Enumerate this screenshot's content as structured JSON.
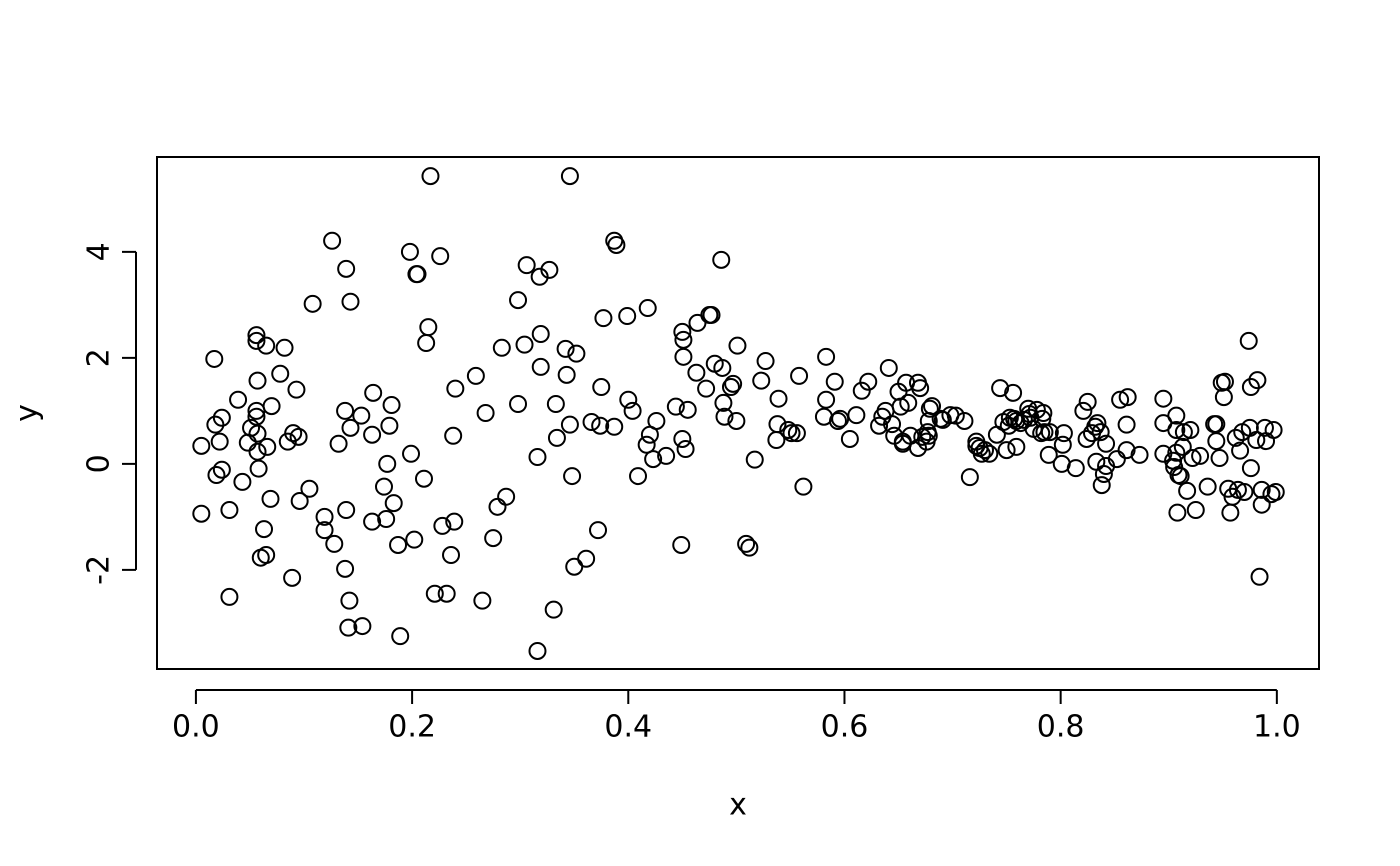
{
  "chart_data": {
    "type": "scatter",
    "x_label": "x",
    "y_label": "y",
    "color": "#000000",
    "grid": false,
    "xlim": [
      -0.036,
      1.039
    ],
    "ylim": [
      -3.87,
      5.79
    ],
    "xticks": [
      {
        "value": 0,
        "label": "0.0"
      },
      0.2,
      0.4,
      0.6,
      0.8,
      {
        "value": 1,
        "label": "1.0"
      }
    ],
    "yticks": [
      -2,
      0,
      2,
      4
    ],
    "x": [
      0.005,
      0.005,
      0.017,
      0.018,
      0.019,
      0.022,
      0.024,
      0.024,
      0.031,
      0.031,
      0.039,
      0.043,
      0.048,
      0.051,
      0.056,
      0.056,
      0.056,
      0.056,
      0.057,
      0.057,
      0.058,
      0.057,
      0.06,
      0.063,
      0.065,
      0.065,
      0.066,
      0.069,
      0.07,
      0.078,
      0.082,
      0.085,
      0.089,
      0.09,
      0.093,
      0.095,
      0.096,
      0.105,
      0.108,
      0.119,
      0.119,
      0.126,
      0.128,
      0.132,
      0.138,
      0.138,
      0.139,
      0.139,
      0.143,
      0.143,
      0.142,
      0.141,
      0.153,
      0.154,
      0.163,
      0.163,
      0.164,
      0.174,
      0.176,
      0.177,
      0.179,
      0.181,
      0.183,
      0.187,
      0.189,
      0.198,
      0.199,
      0.202,
      0.204,
      0.205,
      0.211,
      0.213,
      0.215,
      0.217,
      0.221,
      0.226,
      0.228,
      0.232,
      0.236,
      0.238,
      0.239,
      0.24,
      0.259,
      0.265,
      0.268,
      0.275,
      0.279,
      0.283,
      0.287,
      0.298,
      0.298,
      0.304,
      0.306,
      0.316,
      0.316,
      0.318,
      0.319,
      0.319,
      0.327,
      0.331,
      0.333,
      0.334,
      0.342,
      0.343,
      0.346,
      0.346,
      0.348,
      0.35,
      0.352,
      0.361,
      0.366,
      0.372,
      0.375,
      0.374,
      0.377,
      0.387,
      0.387,
      0.389,
      0.4,
      0.399,
      0.404,
      0.409,
      0.418,
      0.417,
      0.42,
      0.423,
      0.426,
      0.435,
      0.444,
      0.449,
      0.45,
      0.45,
      0.451,
      0.451,
      0.453,
      0.455,
      0.463,
      0.464,
      0.472,
      0.475,
      0.477,
      0.48,
      0.487,
      0.486,
      0.488,
      0.489,
      0.495,
      0.497,
      0.5,
      0.501,
      0.509,
      0.512,
      0.517,
      0.523,
      0.527,
      0.537,
      0.538,
      0.539,
      0.548,
      0.551,
      0.556,
      0.558,
      0.562,
      0.581,
      0.583,
      0.583,
      0.591,
      0.594,
      0.596,
      0.605,
      0.611,
      0.616,
      0.622,
      0.632,
      0.635,
      0.638,
      0.641,
      0.644,
      0.646,
      0.65,
      0.652,
      0.654,
      0.654,
      0.657,
      0.659,
      0.661,
      0.668,
      0.668,
      0.67,
      0.672,
      0.676,
      0.677,
      0.678,
      0.678,
      0.679,
      0.681,
      0.689,
      0.691,
      0.698,
      0.703,
      0.711,
      0.716,
      0.722,
      0.722,
      0.725,
      0.727,
      0.73,
      0.734,
      0.741,
      0.744,
      0.747,
      0.75,
      0.752,
      0.753,
      0.756,
      0.757,
      0.759,
      0.759,
      0.763,
      0.766,
      0.77,
      0.771,
      0.772,
      0.775,
      0.778,
      0.782,
      0.783,
      0.784,
      0.785,
      0.789,
      0.79,
      0.801,
      0.802,
      0.803,
      0.814,
      0.821,
      0.824,
      0.825,
      0.829,
      0.832,
      0.833,
      0.834,
      0.837,
      0.838,
      0.84,
      0.842,
      0.842,
      0.852,
      0.855,
      0.861,
      0.862,
      0.861,
      0.873,
      0.895,
      0.895,
      0.895,
      0.904,
      0.905,
      0.907,
      0.907,
      0.907,
      0.908,
      0.909,
      0.911,
      0.913,
      0.914,
      0.917,
      0.92,
      0.922,
      0.925,
      0.929,
      0.936,
      0.942,
      0.944,
      0.944,
      0.947,
      0.949,
      0.951,
      0.952,
      0.955,
      0.957,
      0.959,
      0.962,
      0.964,
      0.966,
      0.968,
      0.97,
      0.974,
      0.976,
      0.976,
      0.975,
      0.981,
      0.982,
      0.984,
      0.986,
      0.986,
      0.989,
      0.99,
      0.995,
      0.997,
      0.999
    ],
    "values": [
      -0.94,
      0.34,
      1.98,
      0.74,
      -0.21,
      0.42,
      0.87,
      -0.11,
      -0.87,
      -2.51,
      1.21,
      -0.34,
      0.4,
      0.68,
      2.43,
      2.32,
      1.0,
      0.89,
      1.57,
      0.57,
      -0.09,
      0.23,
      -1.77,
      -1.23,
      2.23,
      -1.72,
      0.32,
      -0.66,
      1.09,
      1.7,
      2.19,
      0.42,
      -2.15,
      0.58,
      1.4,
      0.51,
      -0.7,
      -0.47,
      3.02,
      -1.0,
      -1.25,
      4.21,
      -1.51,
      0.38,
      -1.98,
      1.0,
      3.68,
      -0.87,
      3.06,
      0.68,
      -2.58,
      -3.09,
      0.91,
      -3.06,
      -1.09,
      0.55,
      1.34,
      -0.43,
      -1.04,
      0,
      0.72,
      1.11,
      -0.74,
      -1.53,
      -3.25,
      4.0,
      0.19,
      -1.43,
      3.58,
      3.58,
      -0.28,
      2.28,
      2.58,
      5.43,
      -2.45,
      3.92,
      -1.17,
      -2.45,
      -1.72,
      0.53,
      -1.09,
      1.42,
      1.66,
      -2.58,
      0.96,
      -1.4,
      -0.81,
      2.19,
      -0.62,
      1.13,
      3.09,
      2.25,
      3.75,
      -3.53,
      0.13,
      3.53,
      2.45,
      1.83,
      3.66,
      -2.75,
      1.13,
      0.49,
      2.17,
      1.68,
      5.43,
      0.74,
      -0.23,
      -1.94,
      2.08,
      -1.79,
      0.79,
      -1.25,
      1.45,
      0.72,
      2.75,
      0.7,
      4.21,
      4.13,
      1.21,
      2.79,
      1.0,
      -0.23,
      2.94,
      0.36,
      0.55,
      0.09,
      0.81,
      0.15,
      1.08,
      -1.53,
      2.49,
      0.47,
      2.02,
      2.34,
      0.28,
      1.02,
      1.72,
      2.66,
      1.42,
      2.81,
      2.81,
      1.89,
      1.81,
      3.85,
      1.15,
      0.89,
      1.45,
      1.51,
      0.81,
      2.23,
      -1.51,
      -1.58,
      0.08,
      1.57,
      1.94,
      0.45,
      0.75,
      1.23,
      0.64,
      0.58,
      0.58,
      1.66,
      -0.43,
      0.89,
      1.21,
      2.02,
      1.55,
      0.81,
      0.85,
      0.47,
      0.92,
      1.38,
      1.55,
      0.72,
      0.89,
      1.0,
      1.81,
      0.75,
      0.53,
      1.36,
      1.08,
      0.42,
      0.38,
      1.53,
      1.15,
      0.53,
      0.3,
      1.53,
      1.43,
      0.51,
      0.42,
      0.6,
      0.53,
      0.81,
      1.04,
      1.09,
      0.85,
      0.83,
      0.92,
      0.91,
      0.81,
      -0.25,
      0.42,
      0.34,
      0.3,
      0.19,
      0.26,
      0.19,
      0.55,
      1.43,
      0.79,
      0.26,
      0.72,
      0.87,
      1.34,
      0.85,
      0.81,
      0.32,
      0.77,
      0.83,
      1.04,
      0.94,
      0.87,
      0.66,
      1.02,
      0.58,
      0.85,
      0.96,
      0.6,
      0.17,
      0.6,
      0,
      0.36,
      0.58,
      -0.08,
      1.0,
      0.47,
      1.17,
      0.58,
      0.7,
      0.04,
      0.77,
      0.6,
      -0.4,
      -0.19,
      0.38,
      -0.04,
      0.09,
      1.21,
      0.74,
      1.26,
      0.26,
      0.17,
      1.23,
      0.77,
      0.19,
      0.06,
      -0.06,
      0.91,
      0.64,
      0.21,
      -0.92,
      -0.21,
      -0.23,
      0.32,
      0.6,
      -0.51,
      0.64,
      0.11,
      -0.87,
      0.15,
      -0.43,
      0.75,
      0.75,
      0.43,
      0.11,
      1.53,
      1.26,
      1.55,
      -0.47,
      -0.92,
      -0.62,
      0.49,
      -0.49,
      0.25,
      0.6,
      -0.53,
      2.32,
      1.45,
      -0.08,
      0.68,
      0.45,
      1.58,
      -2.13,
      -0.77,
      -0.49,
      0.68,
      0.43,
      -0.57,
      0.64,
      -0.53
    ]
  }
}
